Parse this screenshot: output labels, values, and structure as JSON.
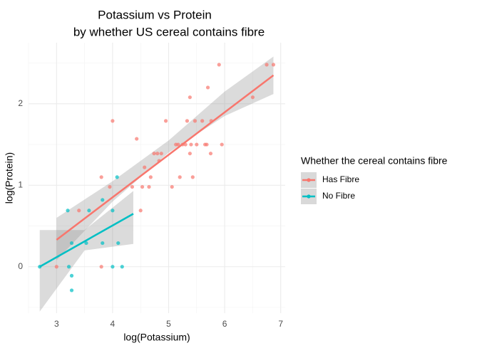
{
  "chart_data": {
    "type": "scatter",
    "title": [
      "Potassium vs Protein",
      "by whether US cereal contains fibre"
    ],
    "x_label": "log(Potassium)",
    "y_label": "log(Protein)",
    "xlim": [
      2.5,
      7.08
    ],
    "ylim": [
      -0.57,
      2.75
    ],
    "xticks": [
      3,
      4,
      5,
      6,
      7
    ],
    "yticks": [
      0,
      1,
      2
    ],
    "grid": true,
    "minor_grid": true,
    "legend_title": "Whether the cereal contains fibre",
    "legend_position": "right",
    "series": [
      {
        "name": "Has Fibre",
        "color": "#F8766D",
        "x": [
          3.0,
          3.4,
          3.8,
          3.8,
          3.95,
          4.0,
          4.35,
          4.43,
          4.5,
          4.53,
          4.57,
          4.65,
          4.68,
          4.74,
          4.8,
          4.83,
          4.87,
          4.95,
          5.06,
          5.13,
          5.17,
          5.2,
          5.25,
          5.3,
          5.33,
          5.38,
          5.38,
          5.4,
          5.43,
          5.47,
          5.5,
          5.6,
          5.65,
          5.68,
          5.7,
          5.75,
          5.76,
          5.9,
          5.95,
          6.5,
          6.75,
          6.87
        ],
        "values": [
          0,
          0.69,
          1.1,
          0,
          0.98,
          1.79,
          0.98,
          1.57,
          0.69,
          0.98,
          1.22,
          0.98,
          1.1,
          1.39,
          1.39,
          1.3,
          1.39,
          1.79,
          0.98,
          1.5,
          1.5,
          1.1,
          1.5,
          1.5,
          1.79,
          2.08,
          1.39,
          1.5,
          1.1,
          1.79,
          1.5,
          1.79,
          1.5,
          1.5,
          2.2,
          1.39,
          1.79,
          2.48,
          1.5,
          2.08,
          2.48,
          2.48
        ],
        "fit": {
          "x": [
            3.0,
            6.87
          ],
          "y": [
            0.33,
            2.35
          ]
        },
        "ribbon": {
          "x": [
            3.0,
            4.0,
            5.0,
            6.0,
            6.87
          ],
          "lower": [
            0.08,
            0.8,
            1.4,
            1.85,
            2.12
          ],
          "upper": [
            0.6,
            1.05,
            1.55,
            2.15,
            2.58
          ]
        }
      },
      {
        "name": "No Fibre",
        "color": "#00BFC4",
        "x": [
          2.7,
          3.2,
          3.22,
          3.27,
          3.27,
          3.27,
          3.53,
          3.58,
          3.82,
          3.82,
          4.0,
          4.0,
          4.08,
          4.1,
          4.17
        ],
        "values": [
          0,
          0.69,
          0,
          -0.11,
          -0.29,
          0.29,
          0.29,
          0.69,
          0.29,
          0.82,
          0.69,
          0,
          1.1,
          0.29,
          0
        ],
        "fit": {
          "x": [
            2.7,
            4.37
          ],
          "y": [
            0,
            0.65
          ]
        },
        "ribbon": {
          "x": [
            2.7,
            3.5,
            4.37
          ],
          "lower": [
            -0.55,
            0.2,
            0.28
          ],
          "upper": [
            0.45,
            0.45,
            0.93
          ]
        }
      }
    ]
  }
}
